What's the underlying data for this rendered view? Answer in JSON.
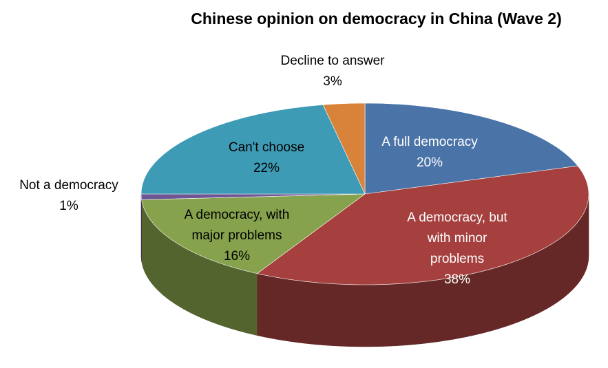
{
  "chart_data": {
    "type": "pie",
    "title": "Chinese opinion on democracy in China (Wave 2)",
    "style": "3d-pie",
    "slices": [
      {
        "label_lines": [
          "A full democracy"
        ],
        "percent_label": "20%",
        "value": 20,
        "color": "#4A73A8"
      },
      {
        "label_lines": [
          "A democracy, but",
          "with minor",
          "problems"
        ],
        "percent_label": "38%",
        "value": 38,
        "color": "#A5403E"
      },
      {
        "label_lines": [
          "A democracy, with",
          "major problems"
        ],
        "percent_label": "16%",
        "value": 16,
        "color": "#86A24C"
      },
      {
        "label_lines": [
          "Not a democracy"
        ],
        "percent_label": "1%",
        "value": 1,
        "color": "#6E5594"
      },
      {
        "label_lines": [
          "Can't choose"
        ],
        "percent_label": "22%",
        "value": 22,
        "color": "#3E9BB5"
      },
      {
        "label_lines": [
          "Decline to answer"
        ],
        "percent_label": "3%",
        "value": 3,
        "color": "#D9823A"
      }
    ]
  }
}
